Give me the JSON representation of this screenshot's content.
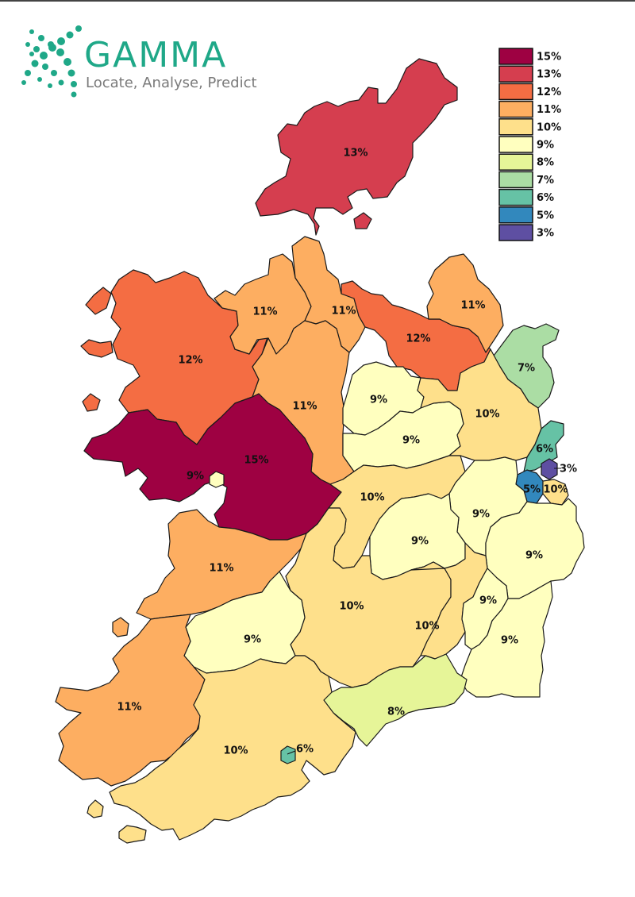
{
  "logo": {
    "brand": "GAMMA",
    "tagline": "Locate, Analyse, Predict",
    "color": "#1fa888"
  },
  "legend": [
    {
      "label": "15%",
      "color": "#9e0142"
    },
    {
      "label": "13%",
      "color": "#d53e4f"
    },
    {
      "label": "12%",
      "color": "#f46d43"
    },
    {
      "label": "11%",
      "color": "#fdae61"
    },
    {
      "label": "10%",
      "color": "#fee08b"
    },
    {
      "label": "9%",
      "color": "#ffffbf"
    },
    {
      "label": "8%",
      "color": "#e6f598"
    },
    {
      "label": "7%",
      "color": "#abdda4"
    },
    {
      "label": "6%",
      "color": "#66c2a5"
    },
    {
      "label": "5%",
      "color": "#3288bd"
    },
    {
      "label": "3%",
      "color": "#5e4fa2"
    }
  ],
  "regions": [
    {
      "id": "donegal",
      "label": "13%",
      "value": 13
    },
    {
      "id": "mayo",
      "label": "12%",
      "value": 12
    },
    {
      "id": "sligo",
      "label": "11%",
      "value": 11
    },
    {
      "id": "leitrim",
      "label": "11%",
      "value": 11
    },
    {
      "id": "cavan",
      "label": "12%",
      "value": 12
    },
    {
      "id": "monaghan",
      "label": "11%",
      "value": 11
    },
    {
      "id": "louth",
      "label": "7%",
      "value": 7
    },
    {
      "id": "roscommon",
      "label": "11%",
      "value": 11
    },
    {
      "id": "galway-city",
      "label": "9%",
      "value": 9
    },
    {
      "id": "galway",
      "label": "15%",
      "value": 15
    },
    {
      "id": "longford",
      "label": "9%",
      "value": 9
    },
    {
      "id": "westmeath",
      "label": "9%",
      "value": 9
    },
    {
      "id": "meath",
      "label": "10%",
      "value": 10
    },
    {
      "id": "fingal",
      "label": "6%",
      "value": 6
    },
    {
      "id": "dublin-city",
      "label": "3%",
      "value": 3
    },
    {
      "id": "south-dublin",
      "label": "5%",
      "value": 5
    },
    {
      "id": "dun-laoghaire",
      "label": "10%",
      "value": 10
    },
    {
      "id": "offaly",
      "label": "10%",
      "value": 10
    },
    {
      "id": "kildare",
      "label": "9%",
      "value": 9
    },
    {
      "id": "laois",
      "label": "9%",
      "value": 9
    },
    {
      "id": "wicklow",
      "label": "9%",
      "value": 9
    },
    {
      "id": "clare",
      "label": "11%",
      "value": 11
    },
    {
      "id": "tipperary",
      "label": "10%",
      "value": 10
    },
    {
      "id": "kilkenny",
      "label": "10%",
      "value": 10
    },
    {
      "id": "carlow",
      "label": "9%",
      "value": 9
    },
    {
      "id": "limerick",
      "label": "9%",
      "value": 9
    },
    {
      "id": "wexford",
      "label": "9%",
      "value": 9
    },
    {
      "id": "kerry",
      "label": "11%",
      "value": 11
    },
    {
      "id": "cork",
      "label": "10%",
      "value": 10
    },
    {
      "id": "waterford",
      "label": "8%",
      "value": 8
    },
    {
      "id": "cork-city",
      "label": "6%",
      "value": 6
    }
  ]
}
